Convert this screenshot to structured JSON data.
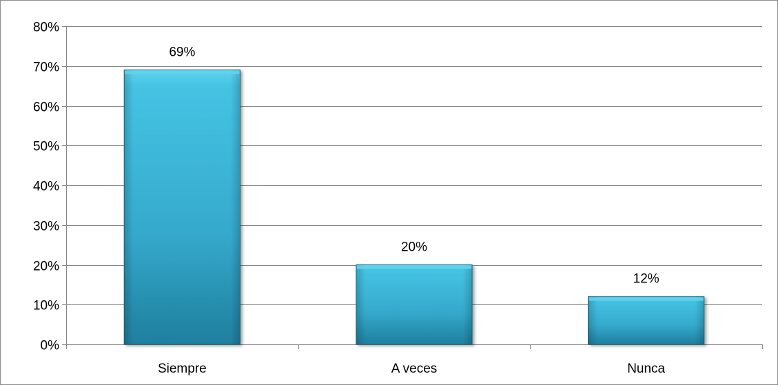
{
  "chart_data": {
    "type": "bar",
    "categories": [
      "Siempre",
      "A veces",
      "Nunca"
    ],
    "values": [
      69,
      20,
      12
    ],
    "data_labels": [
      "69%",
      "20%",
      "12%"
    ],
    "y_ticks": [
      "0%",
      "10%",
      "20%",
      "30%",
      "40%",
      "50%",
      "60%",
      "70%",
      "80%"
    ],
    "ylim": [
      0,
      80
    ],
    "grid": true,
    "legend": "none",
    "title": "",
    "xlabel": "",
    "ylabel": "",
    "colors": {
      "bar_top": "#5fd3ee",
      "bar_mid": "#3bb6d8",
      "bar_bottom": "#1f7f9e",
      "bar_edge": "#1b6e88",
      "grid": "#868686",
      "axis": "#868686"
    }
  }
}
